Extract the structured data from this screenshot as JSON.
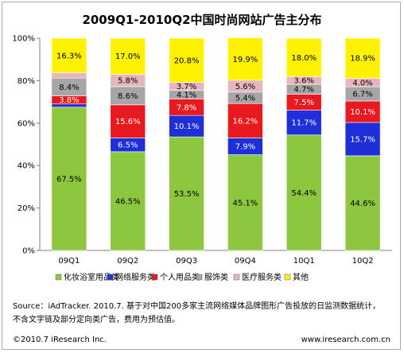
{
  "chart_data": {
    "type": "bar",
    "stacked": true,
    "title": "2009Q1-2010Q2中国时尚网站广告主分布",
    "categories": [
      "09Q1",
      "09Q2",
      "09Q3",
      "09Q4",
      "10Q1",
      "10Q2"
    ],
    "series": [
      {
        "name": "化妆浴室用品类",
        "color": "#8dc63f",
        "values": [
          67.5,
          46.5,
          53.5,
          45.1,
          54.4,
          44.6
        ],
        "labels": [
          "67.5%",
          "46.5%",
          "53.5%",
          "45.1%",
          "54.4%",
          "44.6%"
        ]
      },
      {
        "name": "网络服务类",
        "color": "#1f2fd8",
        "values": [
          1.5,
          6.5,
          10.1,
          7.9,
          11.7,
          15.7
        ],
        "labels": [
          "",
          "6.5%",
          "10.1%",
          "7.9%",
          "11.7%",
          "15.7%"
        ]
      },
      {
        "name": "个人用品类",
        "color": "#e8191f",
        "values": [
          3.8,
          15.6,
          7.8,
          16.2,
          7.5,
          10.1
        ],
        "labels": [
          "3.8%",
          "15.6%",
          "7.8%",
          "16.2%",
          "7.5%",
          "10.1%"
        ]
      },
      {
        "name": "服饰类",
        "color": "#a6a6a6",
        "values": [
          8.4,
          8.6,
          4.1,
          5.4,
          4.7,
          6.7
        ],
        "labels": [
          "8.4%",
          "8.6%",
          "4.1%",
          "5.4%",
          "4.7%",
          "6.7%"
        ]
      },
      {
        "name": "医疗服务类",
        "color": "#e8b4bf",
        "values": [
          2.5,
          5.8,
          3.7,
          5.6,
          3.6,
          4.0
        ],
        "labels": [
          "",
          "5.8%",
          "3.7%",
          "5.6%",
          "3.6%",
          "4.0%"
        ]
      },
      {
        "name": "其他",
        "color": "#fff200",
        "values": [
          16.3,
          17.0,
          20.8,
          19.9,
          18.0,
          18.9
        ],
        "labels": [
          "16.3%",
          "17.0%",
          "20.8%",
          "19.9%",
          "18.0%",
          "18.9%"
        ]
      }
    ],
    "y_ticks": [
      "0%",
      "20%",
      "40%",
      "60%",
      "80%",
      "100%"
    ],
    "ylim": [
      0,
      100
    ],
    "legend_position": "bottom",
    "grid": false
  },
  "source": {
    "line1": "Source：iAdTracker. 2010.7. 基于对中国200多家主流网络媒体品牌图形广告投放的日监测数据统计，",
    "line2": "不含文字链及部分定向类广告，费用为预估值。"
  },
  "footer": {
    "copyright": "©2010.7 iResearch Inc.",
    "website": "www.iresearch.com.cn"
  }
}
